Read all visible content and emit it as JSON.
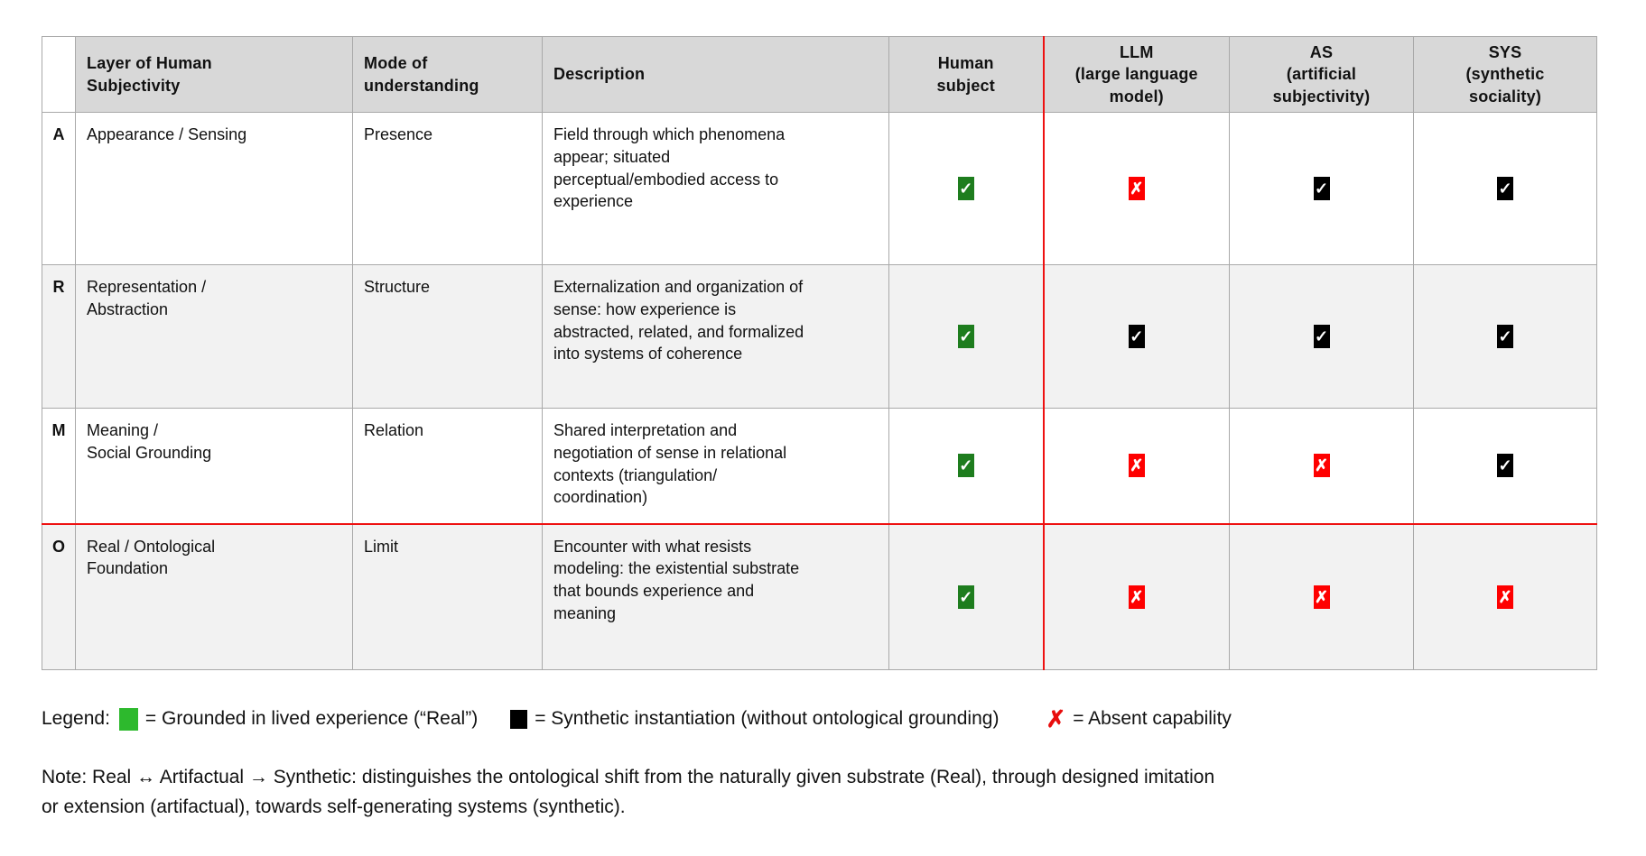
{
  "table": {
    "headers": [
      "",
      "Layer of Human\nSubjectivity",
      "Mode of\nunderstanding",
      "Description",
      "Human\nsubject",
      "LLM\n(large language\nmodel)",
      "AS\n(artificial\nsubjectivity)",
      "SYS\n(synthetic\nsociality)"
    ],
    "rows": [
      {
        "letter": "A",
        "layer": "Appearance / Sensing",
        "mode": "Presence",
        "description": "Field through which phenomena\nappear; situated\nperceptual/embodied access to\nexperience",
        "marks": [
          "green-check",
          "red-x",
          "black-check",
          "black-check"
        ]
      },
      {
        "letter": "R",
        "layer": "Representation /\nAbstraction",
        "mode": "Structure",
        "description": "Externalization and organization of\nsense: how experience is\nabstracted, related, and formalized\ninto systems of coherence",
        "marks": [
          "green-check",
          "black-check",
          "black-check",
          "black-check"
        ]
      },
      {
        "letter": "M",
        "layer": "Meaning /\nSocial Grounding",
        "mode": "Relation",
        "description": "Shared interpretation and\nnegotiation of sense in relational\ncontexts (triangulation/\ncoordination)",
        "marks": [
          "green-check",
          "red-x",
          "red-x",
          "black-check"
        ]
      },
      {
        "letter": "O",
        "layer": "Real / Ontological\nFoundation",
        "mode": "Limit",
        "description": "Encounter with what resists\nmodeling: the existential substrate\nthat bounds experience and\nmeaning",
        "marks": [
          "green-check",
          "red-x",
          "red-x",
          "red-x"
        ]
      }
    ]
  },
  "icons": {
    "green-check": {
      "glyph": "✓",
      "bg": "#1e7d1e",
      "fg": "#ffffff"
    },
    "black-check": {
      "glyph": "✓",
      "bg": "#000000",
      "fg": "#ffffff"
    },
    "red-x": {
      "glyph": "✗",
      "bg": "#fe0000",
      "fg": "#ffffff"
    }
  },
  "legend": {
    "label": "Legend:",
    "items": [
      {
        "icon": "green-square",
        "text": "= Grounded in lived experience (“Real”)"
      },
      {
        "icon": "black-square",
        "text": "= Synthetic instantiation (without ontological grounding)"
      },
      {
        "icon": "red-x-glyph",
        "glyph": "✗",
        "text": "= Absent capability"
      }
    ]
  },
  "note": {
    "text": "Note: Real ↔ Artifactual → Synthetic: distinguishes the ontological shift from the naturally given substrate (Real), through designed imitation\nor extension (artifactual), towards self-generating systems (synthetic)."
  },
  "colors": {
    "header_bg": "#d8d8d8",
    "row_alt_bg": "#f2f2f2",
    "grid_border": "#a9a9a9",
    "red_divider": "#ee1111",
    "table_check_green": "#1e7d1e",
    "legend_green": "#2db92d",
    "mark_red": "#fe0000",
    "mark_black": "#000000"
  }
}
